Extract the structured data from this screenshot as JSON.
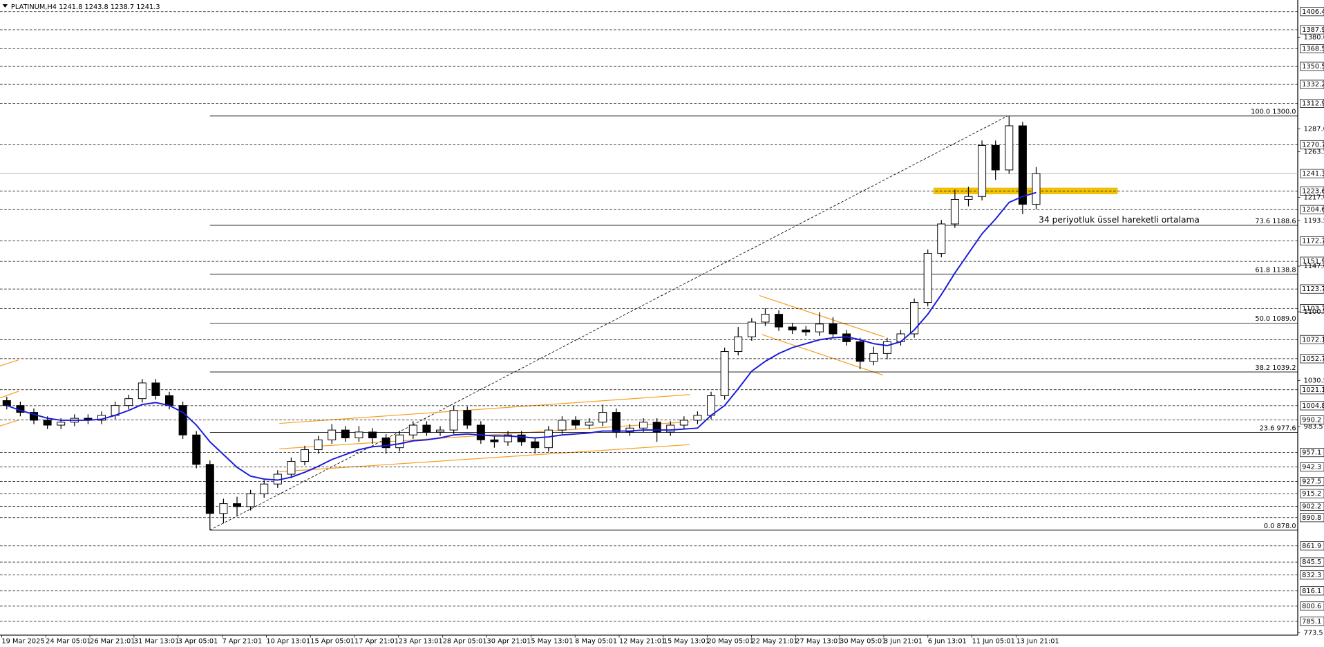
{
  "chart_data": {
    "type": "candlestick",
    "header": "PLATINUM,H4  1241.8 1243.8 1238.7 1241.3",
    "annotation": "34 periyotluk üssel hareketli ortalama",
    "ylim": [
      771,
      1418.2
    ],
    "candle_color": "#000000",
    "ema_color": "#1a1adc",
    "x_labels": [
      "19 Mar 2025",
      "24 Mar 05:01",
      "26 Mar 21:01",
      "31 Mar 13:01",
      "3 Apr 05:01",
      "7 Apr 21:01",
      "10 Apr 13:01",
      "15 Apr 05:01",
      "17 Apr 21:01",
      "23 Apr 13:01",
      "28 Apr 05:01",
      "30 Apr 21:01",
      "5 May 13:01",
      "8 May 05:01",
      "12 May 21:01",
      "15 May 13:01",
      "20 May 05:01",
      "22 May 21:01",
      "27 May 13:01",
      "30 May 05:01",
      "3 Jun 21:01",
      "6 Jun 13:01",
      "11 Jun 05:01",
      "13 Jun 21:01"
    ],
    "yticks": [
      {
        "value": 1380,
        "label": "1380.0"
      },
      {
        "value": 1287,
        "label": "1287.0"
      },
      1263.5,
      {
        "value": 1217,
        "label": "1217.0"
      },
      1193.5,
      {
        "value": 1147,
        "label": "1147.0"
      },
      1100.5,
      1030.5,
      983.5,
      773.5
    ],
    "levels": [
      1406.4,
      1387.9,
      1368.5,
      1350.5,
      1332.2,
      1312.9,
      1270.7,
      1223.6,
      1204.6,
      1172.7,
      1151.9,
      1123.7,
      1103.7,
      1072.1,
      1052.7,
      1021.1,
      1004.8,
      990.2,
      957.1,
      942.3,
      927.5,
      915.2,
      902.2,
      890.8,
      861.9,
      845.5,
      832.3,
      816.1,
      800.6,
      785.1
    ],
    "current_price": 1241.3,
    "fib_levels": [
      {
        "price": 1300,
        "label": "100.0 1300.0"
      },
      {
        "price": 1188.6,
        "label": "73.6 1188.6"
      },
      {
        "price": 1138.8,
        "label": "61.8 1138.8"
      },
      {
        "price": 1089,
        "label": "50.0 1089.0"
      },
      {
        "price": 1039.2,
        "label": "38.2 1039.2"
      },
      {
        "price": 977.6,
        "label": "23.6 977.6"
      },
      {
        "price": 878,
        "label": "0.0 878.0"
      }
    ],
    "candles": {
      "open": [
        1010,
        1005,
        998,
        990,
        985,
        988,
        992,
        990,
        995,
        1005,
        1012,
        1028,
        1015,
        1005,
        975,
        945,
        895,
        905,
        902,
        915,
        925,
        935,
        948,
        960,
        970,
        980,
        972,
        978,
        972,
        962,
        975,
        985,
        978,
        980,
        1000,
        985,
        970,
        968,
        975,
        968,
        962,
        980,
        990,
        985,
        988,
        998,
        978,
        982,
        988,
        978,
        985,
        990,
        995,
        1015,
        1060,
        1075,
        1090,
        1098,
        1085,
        1082,
        1080,
        1088,
        1078,
        1070,
        1050,
        1058,
        1070,
        1078,
        1110,
        1160,
        1190,
        1215,
        1218,
        1270,
        1245,
        1290,
        1210
      ],
      "high": [
        1014,
        1009,
        1002,
        994,
        992,
        996,
        996,
        999,
        1009,
        1016,
        1032,
        1032,
        1019,
        1009,
        979,
        949,
        910,
        912,
        919,
        929,
        939,
        952,
        964,
        974,
        986,
        984,
        984,
        982,
        976,
        979,
        989,
        989,
        984,
        1005,
        1004,
        989,
        974,
        979,
        979,
        972,
        984,
        994,
        994,
        992,
        1006,
        1002,
        986,
        992,
        992,
        989,
        994,
        999,
        1019,
        1064,
        1085,
        1094,
        1104,
        1102,
        1089,
        1086,
        1100,
        1095,
        1082,
        1074,
        1065,
        1074,
        1082,
        1114,
        1164,
        1194,
        1225,
        1228,
        1275,
        1275,
        1300,
        1294,
        1248
      ],
      "low": [
        1001,
        994,
        986,
        981,
        981,
        984,
        986,
        986,
        991,
        1001,
        1008,
        1011,
        1001,
        971,
        941,
        878,
        885,
        893,
        898,
        911,
        921,
        931,
        944,
        956,
        966,
        968,
        968,
        966,
        956,
        958,
        971,
        974,
        974,
        976,
        981,
        966,
        962,
        964,
        964,
        956,
        958,
        976,
        981,
        981,
        984,
        972,
        974,
        978,
        968,
        974,
        981,
        986,
        991,
        1011,
        1056,
        1071,
        1086,
        1081,
        1078,
        1076,
        1076,
        1074,
        1066,
        1042,
        1046,
        1052,
        1066,
        1074,
        1106,
        1156,
        1186,
        1208,
        1214,
        1235,
        1241,
        1200,
        1205
      ],
      "close": [
        1005,
        998,
        990,
        985,
        988,
        992,
        990,
        995,
        1005,
        1012,
        1028,
        1015,
        1005,
        975,
        945,
        895,
        905,
        902,
        915,
        925,
        935,
        948,
        960,
        970,
        980,
        972,
        978,
        972,
        962,
        975,
        985,
        978,
        980,
        1000,
        985,
        970,
        968,
        975,
        968,
        962,
        980,
        990,
        985,
        988,
        998,
        978,
        982,
        988,
        978,
        985,
        990,
        995,
        1015,
        1060,
        1075,
        1090,
        1098,
        1085,
        1082,
        1080,
        1088,
        1078,
        1070,
        1050,
        1058,
        1070,
        1078,
        1110,
        1160,
        1190,
        1215,
        1218,
        1270,
        1245,
        1290,
        1210,
        1241.3
      ]
    },
    "ema": [
      1005,
      1000,
      996,
      992,
      990,
      990,
      990,
      991,
      995,
      1000,
      1006,
      1008,
      1005,
      998,
      985,
      968,
      955,
      942,
      933,
      930,
      929,
      932,
      937,
      943,
      950,
      955,
      960,
      963,
      964,
      966,
      969,
      970,
      972,
      975,
      976,
      975,
      974,
      974,
      973,
      972,
      973,
      975,
      976,
      977,
      979,
      979,
      979,
      980,
      980,
      980,
      981,
      982,
      995,
      1005,
      1022,
      1040,
      1050,
      1058,
      1064,
      1068,
      1072,
      1074,
      1075,
      1072,
      1068,
      1066,
      1070,
      1082,
      1098,
      1118,
      1140,
      1160,
      1180,
      1195,
      1212,
      1218,
      1222
    ]
  }
}
